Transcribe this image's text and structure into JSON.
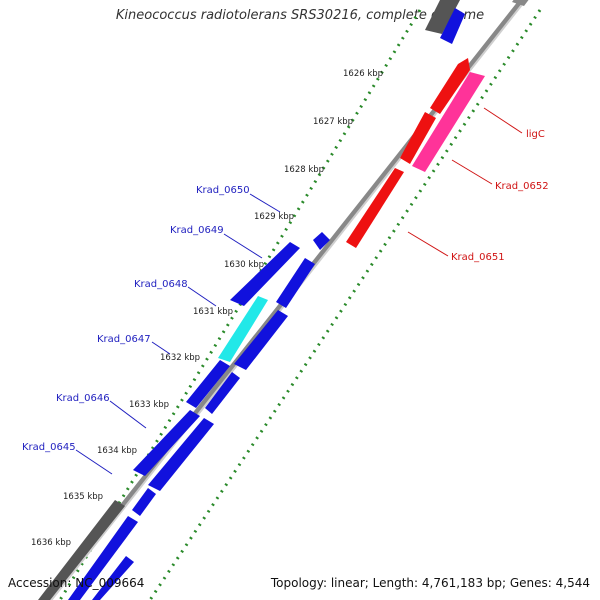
{
  "title": "Kineococcus radiotolerans SRS30216, complete genome",
  "footer": {
    "accession": "Accession: NC_009664",
    "summary": "Topology: linear; Length: 4,761,183 bp; Genes: 4,544"
  },
  "colors": {
    "forward_gene": "#1111dd",
    "highlight_gene": "#22e8e8",
    "reverse_gene": "#ee1111",
    "highlight_reverse": "#ff3399",
    "other_gene": "#555555",
    "backbone": "#888888",
    "tick": "#2a8a2a"
  },
  "kbp_ticks": [
    "1626 kbp",
    "1627 kbp",
    "1628 kbp",
    "1629 kbp",
    "1630 kbp",
    "1631 kbp",
    "1632 kbp",
    "1633 kbp",
    "1634 kbp",
    "1635 kbp",
    "1636 kbp"
  ],
  "forward_labels": [
    "Krad_0650",
    "Krad_0649",
    "Krad_0648",
    "Krad_0647",
    "Krad_0646",
    "Krad_0645"
  ],
  "reverse_labels": [
    "ligC",
    "Krad_0652",
    "Krad_0651"
  ]
}
